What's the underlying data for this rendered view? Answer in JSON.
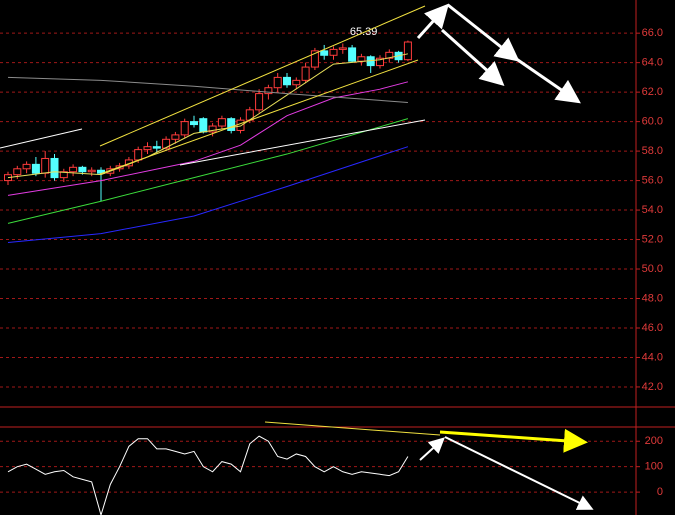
{
  "chart_data": [
    {
      "type": "candlestick",
      "up_color": "#ff3c3c",
      "down_color": "#54ffff",
      "ylim": [
        40.64,
        68.25
      ],
      "yticks": [
        {
          "value": 42,
          "label": "42.0"
        },
        {
          "value": 44,
          "label": "44.0"
        },
        {
          "value": 46,
          "label": "46.0"
        },
        {
          "value": 48,
          "label": "48.0"
        },
        {
          "value": 50,
          "label": "50.0"
        },
        {
          "value": 52,
          "label": "52.0"
        },
        {
          "value": 54,
          "label": "54.0"
        },
        {
          "value": 56,
          "label": "56.0"
        },
        {
          "value": 58,
          "label": "58.0"
        },
        {
          "value": 60,
          "label": "60.0"
        },
        {
          "value": 62,
          "label": "62.0"
        },
        {
          "value": 64,
          "label": "64.0"
        },
        {
          "value": 66,
          "label": "66.0"
        }
      ],
      "grid": true,
      "open": [
        56.0,
        56.4,
        56.8,
        57.1,
        56.5,
        57.5,
        56.2,
        56.6,
        56.9,
        56.6,
        56.7,
        56.5,
        56.8,
        57.0,
        57.4,
        58.1,
        58.3,
        58.2,
        58.8,
        59.1,
        60.0,
        60.2,
        59.3,
        59.7,
        60.2,
        59.4,
        60.1,
        60.8,
        61.9,
        62.3,
        63.0,
        62.5,
        62.8,
        63.7,
        64.8,
        64.5,
        64.9,
        65.0,
        64.1,
        64.4,
        63.8,
        64.3,
        64.7,
        64.2
      ],
      "high": [
        56.6,
        57.0,
        57.3,
        57.6,
        58.0,
        57.8,
        56.8,
        57.1,
        57.0,
        56.9,
        56.9,
        57.0,
        57.2,
        57.6,
        58.3,
        58.6,
        58.7,
        59.0,
        59.3,
        60.2,
        60.4,
        60.3,
        59.9,
        60.4,
        60.3,
        60.3,
        61.0,
        62.2,
        62.5,
        63.3,
        63.3,
        63.0,
        64.0,
        65.0,
        65.2,
        65.1,
        65.3,
        65.2,
        64.6,
        64.5,
        64.5,
        64.9,
        64.8,
        65.5
      ],
      "low": [
        55.7,
        56.1,
        56.5,
        56.3,
        56.2,
        56.0,
        55.9,
        56.3,
        56.4,
        56.3,
        54.6,
        56.3,
        56.6,
        56.8,
        57.2,
        57.8,
        57.9,
        58.0,
        58.5,
        58.9,
        59.6,
        59.2,
        59.0,
        59.5,
        59.2,
        59.2,
        59.9,
        60.6,
        61.5,
        62.0,
        62.3,
        62.2,
        62.6,
        63.5,
        64.2,
        64.2,
        64.6,
        64.0,
        63.8,
        63.3,
        63.6,
        64.0,
        64.0,
        64.1
      ],
      "close": [
        56.4,
        56.8,
        57.1,
        56.5,
        57.5,
        56.2,
        56.6,
        56.9,
        56.6,
        56.7,
        56.5,
        56.8,
        57.0,
        57.4,
        58.1,
        58.3,
        58.2,
        58.8,
        59.1,
        60.0,
        59.8,
        59.3,
        59.7,
        60.2,
        59.4,
        60.1,
        60.8,
        61.9,
        62.3,
        63.0,
        62.5,
        62.8,
        63.7,
        64.8,
        64.5,
        64.9,
        65.0,
        64.1,
        64.4,
        63.8,
        64.3,
        64.7,
        64.2,
        65.4
      ],
      "price_label": "65.39",
      "overlays": [
        {
          "color": "#e8e05a",
          "x": [
            0,
            5,
            10,
            15,
            20,
            25,
            30,
            35,
            40,
            43
          ],
          "values": [
            56.2,
            56.6,
            56.4,
            57.6,
            59.2,
            59.7,
            61.8,
            63.9,
            64.2,
            64.6
          ]
        },
        {
          "color": "#e23ce2",
          "x": [
            0,
            10,
            20,
            25,
            30,
            35,
            40,
            43
          ],
          "values": [
            55.0,
            56.0,
            57.3,
            58.4,
            60.4,
            61.6,
            62.2,
            62.7
          ]
        },
        {
          "color": "#3cdc3c",
          "x": [
            0,
            10,
            20,
            30,
            43
          ],
          "values": [
            53.1,
            54.6,
            56.2,
            57.8,
            60.2
          ]
        },
        {
          "color": "#2828ff",
          "x": [
            0,
            10,
            20,
            30,
            43
          ],
          "values": [
            51.8,
            52.4,
            53.6,
            55.6,
            58.3
          ]
        },
        {
          "color": "#8c8c8c",
          "x": [
            0,
            10,
            20,
            30,
            43
          ],
          "values": [
            63.0,
            62.8,
            62.4,
            61.9,
            61.3
          ]
        }
      ]
    },
    {
      "type": "line",
      "color": "#ffffff",
      "ylim": [
        -90,
        256
      ],
      "yticks": [
        0,
        100,
        200
      ],
      "grid": true,
      "values": [
        80,
        100,
        110,
        90,
        70,
        80,
        85,
        60,
        50,
        40,
        -90,
        30,
        100,
        180,
        210,
        210,
        170,
        170,
        160,
        150,
        160,
        100,
        80,
        120,
        110,
        80,
        190,
        220,
        200,
        140,
        130,
        150,
        140,
        100,
        80,
        100,
        80,
        70,
        80,
        75,
        70,
        65,
        80,
        140
      ]
    }
  ]
}
